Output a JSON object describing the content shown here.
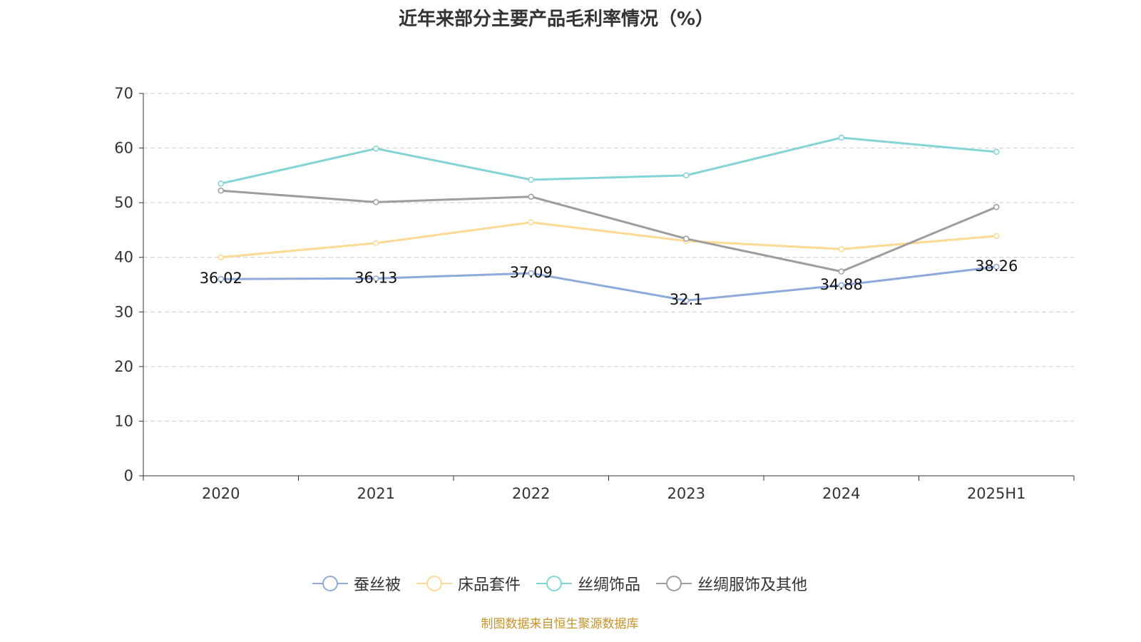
{
  "chart_data": {
    "type": "line",
    "title": "近年来部分主要产品毛利率情况（%）",
    "categories": [
      "2020",
      "2021",
      "2022",
      "2023",
      "2024",
      "2025H1"
    ],
    "ylim": [
      0,
      70
    ],
    "yticks": [
      0,
      10,
      20,
      30,
      40,
      50,
      60,
      70
    ],
    "grid": true,
    "legend_position": "bottom",
    "series": [
      {
        "name": "蚕丝被",
        "color": "#8eaadb",
        "values": [
          36.02,
          36.13,
          37.09,
          32.1,
          34.88,
          38.26
        ],
        "labels": true
      },
      {
        "name": "床品套件",
        "color": "#fdd993",
        "values": [
          40.0,
          42.6,
          46.4,
          43.0,
          41.5,
          43.9
        ],
        "labels": false
      },
      {
        "name": "丝绸饰品",
        "color": "#84d4d6",
        "values": [
          53.5,
          59.9,
          54.2,
          55.0,
          61.9,
          59.3
        ],
        "labels": false
      },
      {
        "name": "丝绸服饰及其他",
        "color": "#9d9d9d",
        "values": [
          52.2,
          50.1,
          51.1,
          43.4,
          37.4,
          49.2
        ],
        "labels": false
      }
    ]
  },
  "source": "制图数据来自恒生聚源数据库"
}
